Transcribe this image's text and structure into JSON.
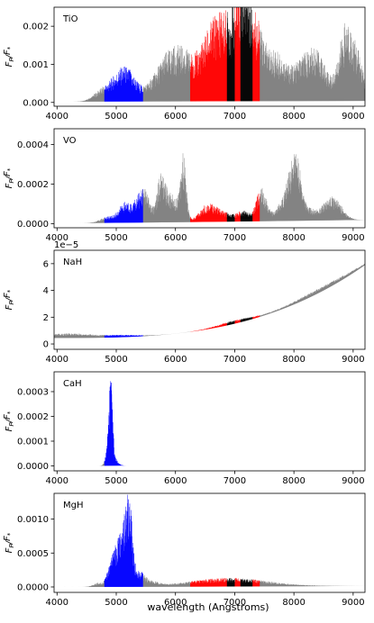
{
  "figure": {
    "xlabel": "wavelength (Angstroms)",
    "colors": {
      "blue_band": "#0000ff",
      "red_band": "#ff0000",
      "black_band": "#000000",
      "default": "#808080"
    },
    "bands": {
      "blue": [
        4800,
        5450
      ],
      "red": [
        6250,
        6870,
        7000,
        7100,
        7300,
        7420
      ],
      "black": [
        6870,
        7000,
        7100,
        7300
      ]
    }
  },
  "chart_data": [
    {
      "type": "line",
      "molecule": "TiO",
      "ylabel": "F_P/F_*",
      "xlim": [
        3950,
        9200
      ],
      "ylim": [
        -0.0001,
        0.0025
      ],
      "xticks": [
        "4000",
        "5000",
        "6000",
        "7000",
        "8000",
        "9000"
      ],
      "yticks": [
        "0.000",
        "0.001",
        "0.002"
      ],
      "ytick_values": [
        0,
        0.001,
        0.002
      ],
      "y_offset_label": "",
      "baseline": {
        "start": 2e-05,
        "end": 4e-05,
        "power": 1
      },
      "features": [
        {
          "c": 4700,
          "w": 120,
          "a": 0.00015
        },
        {
          "c": 4980,
          "w": 180,
          "a": 0.0005
        },
        {
          "c": 5200,
          "w": 150,
          "a": 0.00065
        },
        {
          "c": 5600,
          "w": 150,
          "a": 0.00038
        },
        {
          "c": 5850,
          "w": 150,
          "a": 0.00095
        },
        {
          "c": 6100,
          "w": 150,
          "a": 0.00095
        },
        {
          "c": 6550,
          "w": 250,
          "a": 0.0014
        },
        {
          "c": 6850,
          "w": 200,
          "a": 0.0016
        },
        {
          "c": 7140,
          "w": 120,
          "a": 0.0023
        },
        {
          "c": 7350,
          "w": 140,
          "a": 0.0017
        },
        {
          "c": 7700,
          "w": 180,
          "a": 0.0012
        },
        {
          "c": 8200,
          "w": 200,
          "a": 0.0011
        },
        {
          "c": 8450,
          "w": 150,
          "a": 0.0007
        },
        {
          "c": 8880,
          "w": 120,
          "a": 0.002
        },
        {
          "c": 9100,
          "w": 100,
          "a": 0.0009
        }
      ]
    },
    {
      "type": "line",
      "molecule": "VO",
      "ylabel": "F_P/F_*",
      "xlim": [
        3950,
        9200
      ],
      "ylim": [
        -2e-05,
        0.00048
      ],
      "xticks": [
        "4000",
        "5000",
        "6000",
        "7000",
        "8000",
        "9000"
      ],
      "yticks": [
        "0.0000",
        "0.0002",
        "0.0004"
      ],
      "ytick_values": [
        0,
        0.0002,
        0.0004
      ],
      "y_offset_label": "",
      "baseline": {
        "start": 3e-06,
        "end": 2e-05,
        "power": 1.3
      },
      "features": [
        {
          "c": 4850,
          "w": 120,
          "a": 3e-05
        },
        {
          "c": 5150,
          "w": 110,
          "a": 0.0001
        },
        {
          "c": 5400,
          "w": 100,
          "a": 0.00011
        },
        {
          "c": 5500,
          "w": 80,
          "a": 0.0001
        },
        {
          "c": 5750,
          "w": 70,
          "a": 0.00021
        },
        {
          "c": 5930,
          "w": 110,
          "a": 0.00014
        },
        {
          "c": 6130,
          "w": 50,
          "a": 0.00032
        },
        {
          "c": 6550,
          "w": 140,
          "a": 9e-05
        },
        {
          "c": 6850,
          "w": 150,
          "a": 4e-05
        },
        {
          "c": 7150,
          "w": 100,
          "a": 5e-05
        },
        {
          "c": 7450,
          "w": 90,
          "a": 0.00017
        },
        {
          "c": 7900,
          "w": 150,
          "a": 0.00014
        },
        {
          "c": 8030,
          "w": 90,
          "a": 0.00025
        },
        {
          "c": 8250,
          "w": 140,
          "a": 5e-05
        },
        {
          "c": 8650,
          "w": 150,
          "a": 0.00012
        }
      ]
    },
    {
      "type": "line",
      "molecule": "NaH",
      "ylabel": "F_P/F_*",
      "xlim": [
        3950,
        9200
      ],
      "ylim": [
        -0.4,
        7.0
      ],
      "xticks": [
        "4000",
        "5000",
        "6000",
        "7000",
        "8000",
        "9000"
      ],
      "yticks": [
        "0",
        "2",
        "4",
        "6"
      ],
      "ytick_values": [
        0,
        2,
        4,
        6
      ],
      "y_offset_label": "1e−5",
      "baseline": {
        "start": 0.45,
        "end": 5.9,
        "power": 3
      },
      "features": [
        {
          "c": 4200,
          "w": 400,
          "a": 0.35
        },
        {
          "c": 5100,
          "w": 300,
          "a": 0.15
        },
        {
          "c": 7000,
          "w": 300,
          "a": 0.25
        },
        {
          "c": 8500,
          "w": 500,
          "a": 0.35
        }
      ]
    },
    {
      "type": "line",
      "molecule": "CaH",
      "ylabel": "F_P/F_*",
      "xlim": [
        3950,
        9200
      ],
      "ylim": [
        -2e-05,
        0.00038
      ],
      "xticks": [
        "4000",
        "5000",
        "6000",
        "7000",
        "8000",
        "9000"
      ],
      "yticks": [
        "0.0000",
        "0.0001",
        "0.0002",
        "0.0003"
      ],
      "ytick_values": [
        0,
        0.0001,
        0.0002,
        0.0003
      ],
      "y_offset_label": "",
      "baseline": {
        "start": 0.0,
        "end": 6e-05,
        "power": 2.5
      },
      "features": [
        {
          "c": 4905,
          "w": 30,
          "a": 0.00033
        },
        {
          "c": 4860,
          "w": 40,
          "a": 6e-05
        },
        {
          "c": 4950,
          "w": 60,
          "a": 4e-05
        }
      ]
    },
    {
      "type": "line",
      "molecule": "MgH",
      "ylabel": "F_P/F_*",
      "xlim": [
        3950,
        9200
      ],
      "ylim": [
        -8e-05,
        0.00138
      ],
      "xticks": [
        "4000",
        "5000",
        "6000",
        "7000",
        "8000",
        "9000"
      ],
      "yticks": [
        "0.0000",
        "0.0005",
        "0.0010"
      ],
      "ytick_values": [
        0,
        0.0005,
        0.001
      ],
      "y_offset_label": "",
      "baseline": {
        "start": 0.0,
        "end": 1.5e-05,
        "power": 1.5
      },
      "features": [
        {
          "c": 4700,
          "w": 80,
          "a": 6e-05
        },
        {
          "c": 4950,
          "w": 80,
          "a": 0.00045
        },
        {
          "c": 5150,
          "w": 90,
          "a": 0.0011
        },
        {
          "c": 5230,
          "w": 40,
          "a": 0.0006
        },
        {
          "c": 5400,
          "w": 80,
          "a": 0.0002
        },
        {
          "c": 5600,
          "w": 120,
          "a": 7e-05
        },
        {
          "c": 6900,
          "w": 650,
          "a": 0.00013
        }
      ]
    }
  ]
}
